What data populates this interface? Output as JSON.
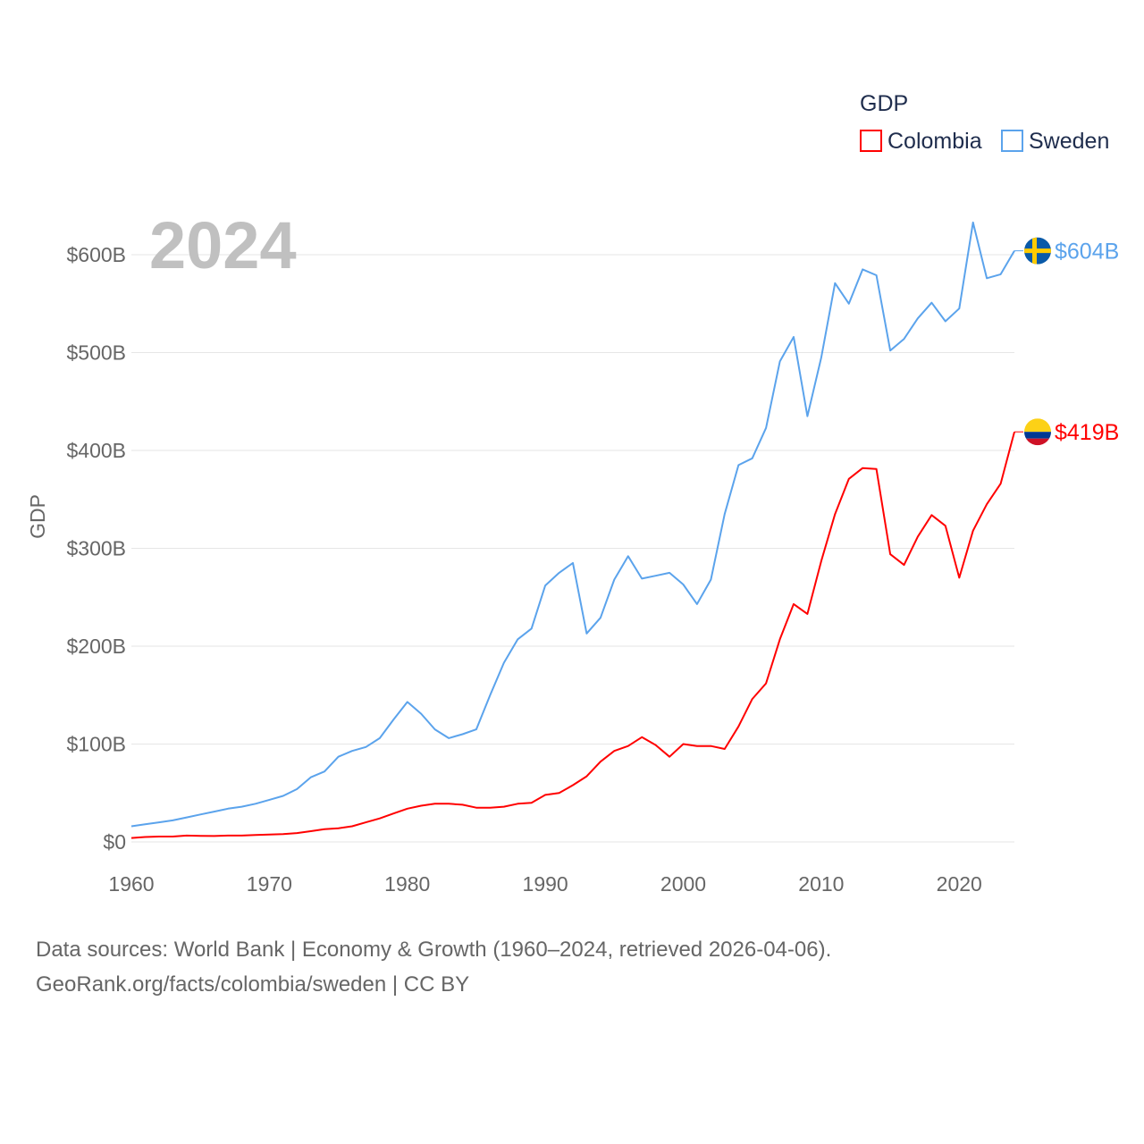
{
  "chart_data": {
    "type": "line",
    "title": "",
    "year_label": "2024",
    "ylabel": "GDP",
    "xlabel": "",
    "xlim": [
      1960,
      2024
    ],
    "ylim": [
      0,
      600
    ],
    "x_ticks": [
      "1960",
      "1970",
      "1980",
      "1990",
      "2000",
      "2010",
      "2020"
    ],
    "x_tick_values": [
      1960,
      1970,
      1980,
      1990,
      2000,
      2010,
      2020
    ],
    "y_ticks": [
      "$0",
      "$100B",
      "$200B",
      "$300B",
      "$400B",
      "$500B",
      "$600B"
    ],
    "y_tick_values": [
      0,
      100,
      200,
      300,
      400,
      500,
      600
    ],
    "grid": true,
    "legend": {
      "title": "GDP",
      "placement": "top-right",
      "entries": [
        "Colombia",
        "Sweden"
      ]
    },
    "x": [
      1960,
      1961,
      1962,
      1963,
      1964,
      1965,
      1966,
      1967,
      1968,
      1969,
      1970,
      1971,
      1972,
      1973,
      1974,
      1975,
      1976,
      1977,
      1978,
      1979,
      1980,
      1981,
      1982,
      1983,
      1984,
      1985,
      1986,
      1987,
      1988,
      1989,
      1990,
      1991,
      1992,
      1993,
      1994,
      1995,
      1996,
      1997,
      1998,
      1999,
      2000,
      2001,
      2002,
      2003,
      2004,
      2005,
      2006,
      2007,
      2008,
      2009,
      2010,
      2011,
      2012,
      2013,
      2014,
      2015,
      2016,
      2017,
      2018,
      2019,
      2020,
      2021,
      2022,
      2023,
      2024
    ],
    "series": [
      {
        "name": "Colombia",
        "color": "#ff0000",
        "end_label": "$419B",
        "flag": "colombia-flag",
        "values": [
          4,
          5,
          5.5,
          5.5,
          6.5,
          6.2,
          6,
          6.5,
          6.5,
          7,
          7.5,
          8,
          9,
          11,
          13,
          14,
          16,
          20,
          24,
          29,
          34,
          37,
          39,
          39,
          38,
          35,
          35,
          36,
          39,
          40,
          48,
          50,
          58,
          67,
          82,
          93,
          98,
          107,
          99,
          87,
          100,
          98,
          98,
          95,
          118,
          146,
          162,
          207,
          243,
          233,
          287,
          335,
          371,
          382,
          381,
          294,
          283,
          312,
          334,
          323,
          270,
          318,
          345,
          366,
          419
        ]
      },
      {
        "name": "Sweden",
        "color": "#5ba3ec",
        "end_label": "$604B",
        "flag": "sweden-flag",
        "values": [
          16,
          18,
          20,
          22,
          25,
          28,
          31,
          34,
          36,
          39,
          43,
          47,
          54,
          66,
          72,
          87,
          93,
          97,
          106,
          125,
          143,
          131,
          115,
          106,
          110,
          115,
          150,
          183,
          207,
          218,
          262,
          275,
          285,
          213,
          229,
          268,
          292,
          269,
          272,
          275,
          263,
          243,
          268,
          335,
          385,
          392,
          423,
          491,
          516,
          435,
          495,
          571,
          550,
          585,
          579,
          502,
          514,
          535,
          551,
          532,
          545,
          633,
          576,
          580,
          604
        ]
      }
    ]
  },
  "footer": {
    "line1": "Data sources: World Bank | Economy & Growth (1960–2024, retrieved 2026-04-06).",
    "line2": "GeoRank.org/facts/colombia/sweden | CC BY"
  }
}
